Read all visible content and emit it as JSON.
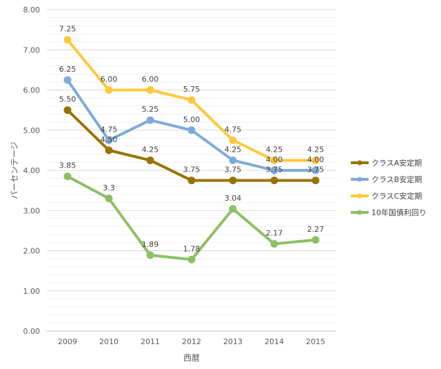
{
  "chart_data": {
    "type": "line",
    "title": "",
    "xlabel": "西暦",
    "ylabel": "パーセンテージ",
    "ylim": [
      0,
      8
    ],
    "grid": true,
    "legend_position": "right",
    "categories": [
      "2009",
      "2010",
      "2011",
      "2012",
      "2013",
      "2014",
      "2015"
    ],
    "y_ticks": [
      "0.00",
      "1.00",
      "2.00",
      "3.00",
      "4.00",
      "5.00",
      "6.00",
      "7.00",
      "8.00"
    ],
    "series": [
      {
        "name": "クラスA安定期",
        "color": "#997300",
        "values": [
          5.5,
          4.5,
          4.25,
          3.75,
          3.75,
          3.75,
          3.75
        ],
        "labels": [
          "5.50",
          "4.50",
          "4.25",
          "3.75",
          "3.75",
          "3.75",
          "3.75"
        ]
      },
      {
        "name": "クラスB安定期",
        "color": "#7EABD6",
        "values": [
          6.25,
          4.75,
          5.25,
          5.0,
          4.25,
          4.0,
          4.0
        ],
        "labels": [
          "6.25",
          "4.75",
          "5.25",
          "5.00",
          "4.25",
          "4.00",
          "4.00"
        ]
      },
      {
        "name": "クラスC安定期",
        "color": "#FFC83D",
        "values": [
          7.25,
          6.0,
          6.0,
          5.75,
          4.75,
          4.25,
          4.25
        ],
        "labels": [
          "7.25",
          "6.00",
          "6.00",
          "5.75",
          "4.75",
          "4.25",
          "4.25"
        ]
      },
      {
        "name": "10年国債利回り",
        "color": "#8BC063",
        "values": [
          3.85,
          3.3,
          1.89,
          1.78,
          3.04,
          2.17,
          2.27
        ],
        "labels": [
          "3.85",
          "3.3",
          "1.89",
          "1.78",
          "3.04",
          "2.17",
          "2.27"
        ]
      }
    ]
  }
}
